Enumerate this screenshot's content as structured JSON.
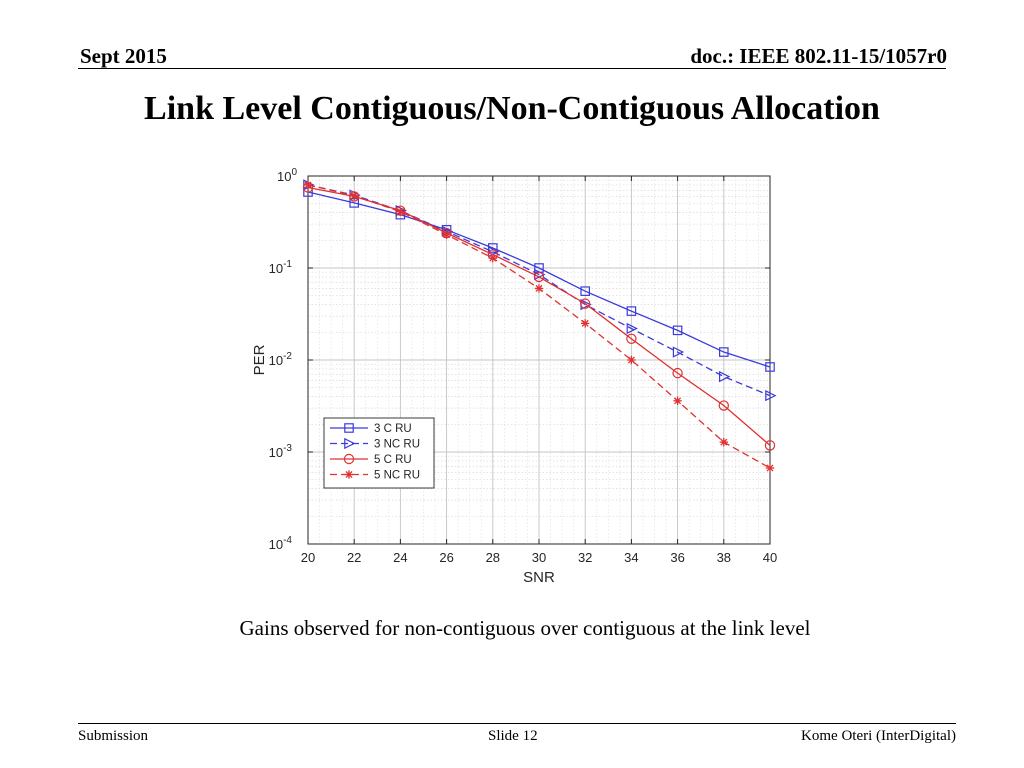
{
  "header": {
    "date": "Sept 2015",
    "doc": "doc.: IEEE 802.11-15/1057r0"
  },
  "title": "Link Level Contiguous/Non-Contiguous Allocation",
  "caption": "Gains observed for non-contiguous over contiguous at the link level",
  "footer": {
    "left": "Submission",
    "center": "Slide 12",
    "right": "Kome Oteri (InterDigital)"
  },
  "chart_data": {
    "type": "line",
    "xlabel": "SNR",
    "ylabel": "PER",
    "y_scale": "log",
    "xlim": [
      20,
      40
    ],
    "ylim": [
      0.0001,
      1
    ],
    "x_ticks": [
      20,
      22,
      24,
      26,
      28,
      30,
      32,
      34,
      36,
      38,
      40
    ],
    "y_ticks": [
      {
        "value": 1,
        "mantissa": "10",
        "exp": "0"
      },
      {
        "value": 0.1,
        "mantissa": "10",
        "exp": "-1"
      },
      {
        "value": 0.01,
        "mantissa": "10",
        "exp": "-2"
      },
      {
        "value": 0.001,
        "mantissa": "10",
        "exp": "-3"
      },
      {
        "value": 0.0001,
        "mantissa": "10",
        "exp": "-4"
      }
    ],
    "grid": true,
    "legend_position": "lower-left",
    "x": [
      20,
      22,
      24,
      26,
      28,
      30,
      32,
      34,
      36,
      38,
      40
    ],
    "series": [
      {
        "name": "3 C RU",
        "color": "#3b3bdd",
        "line": "solid",
        "marker": "square",
        "values": [
          0.67,
          0.51,
          0.38,
          0.26,
          0.165,
          0.1,
          0.056,
          0.034,
          0.021,
          0.0122,
          0.0084
        ]
      },
      {
        "name": "3 NC RU",
        "color": "#3b3bdd",
        "line": "dashed",
        "marker": "triangle-right",
        "values": [
          0.8,
          0.62,
          0.42,
          0.25,
          0.15,
          0.085,
          0.04,
          0.022,
          0.0122,
          0.0066,
          0.0041
        ]
      },
      {
        "name": "5 C RU",
        "color": "#e03030",
        "line": "solid",
        "marker": "circle",
        "values": [
          0.75,
          0.6,
          0.42,
          0.24,
          0.14,
          0.08,
          0.041,
          0.017,
          0.0072,
          0.0032,
          0.00118
        ]
      },
      {
        "name": "5 NC RU",
        "color": "#e03030",
        "line": "dashed",
        "marker": "asterisk",
        "values": [
          0.8,
          0.61,
          0.41,
          0.23,
          0.128,
          0.06,
          0.025,
          0.01,
          0.0036,
          0.00128,
          0.00067
        ]
      }
    ]
  }
}
